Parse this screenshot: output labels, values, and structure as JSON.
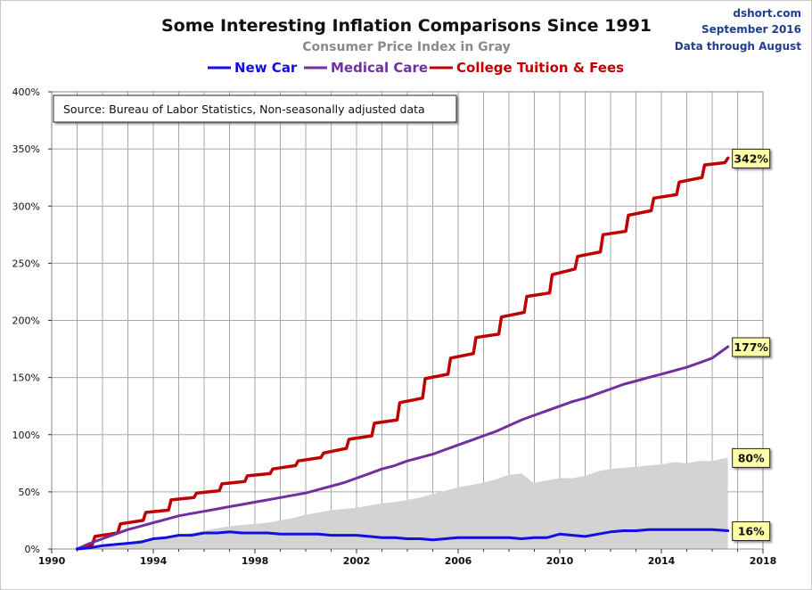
{
  "chart_data": {
    "type": "line",
    "title": "Some Interesting Inflation Comparisons Since 1991",
    "subtitle": "Consumer Price Index in Gray",
    "corner_text": [
      "dshort.com",
      "September 2016",
      "Data through August"
    ],
    "source_note": "Source:  Bureau of Labor Statistics, Non-seasonally adjusted data",
    "xlim": [
      1990,
      2018
    ],
    "ylim": [
      0,
      400
    ],
    "x_ticks": [
      "1990",
      "1994",
      "1998",
      "2002",
      "2006",
      "2010",
      "2014",
      "2018"
    ],
    "y_ticks": [
      "0%",
      "50%",
      "100%",
      "150%",
      "200%",
      "250%",
      "300%",
      "350%",
      "400%"
    ],
    "grid": "vertical every year, horizontal every 50%",
    "legend_position": "top-center",
    "series": [
      {
        "name": "New Car",
        "color": "#1010e0",
        "line_width": 3,
        "x": [
          1991.0,
          1991.5,
          1992.0,
          1992.5,
          1993.0,
          1993.5,
          1994.0,
          1994.5,
          1995.0,
          1995.5,
          1996.0,
          1996.5,
          1997.0,
          1997.5,
          1998.0,
          1998.5,
          1999.0,
          1999.5,
          2000.0,
          2000.5,
          2001.0,
          2001.5,
          2002.0,
          2002.5,
          2003.0,
          2003.5,
          2004.0,
          2004.5,
          2005.0,
          2005.5,
          2006.0,
          2006.5,
          2007.0,
          2007.5,
          2008.0,
          2008.5,
          2009.0,
          2009.5,
          2010.0,
          2010.5,
          2011.0,
          2011.5,
          2012.0,
          2012.5,
          2013.0,
          2013.5,
          2014.0,
          2014.5,
          2015.0,
          2015.5,
          2016.0,
          2016.62
        ],
        "values": [
          0,
          1,
          3,
          4,
          5,
          6,
          9,
          10,
          12,
          12,
          14,
          14,
          15,
          14,
          14,
          14,
          13,
          13,
          13,
          13,
          12,
          12,
          12,
          11,
          10,
          10,
          9,
          9,
          8,
          9,
          10,
          10,
          10,
          10,
          10,
          9,
          10,
          10,
          13,
          12,
          11,
          13,
          15,
          16,
          16,
          17,
          17,
          17,
          17,
          17,
          17,
          16
        ]
      },
      {
        "name": "Medical Care",
        "color": "#7030a0",
        "line_width": 3,
        "x": [
          1991.0,
          1991.5,
          1992.0,
          1992.5,
          1993.0,
          1993.5,
          1994.0,
          1994.5,
          1995.0,
          1995.5,
          1996.0,
          1996.5,
          1997.0,
          1997.5,
          1998.0,
          1998.5,
          1999.0,
          1999.5,
          2000.0,
          2000.5,
          2001.0,
          2001.5,
          2002.0,
          2002.5,
          2003.0,
          2003.5,
          2004.0,
          2004.5,
          2005.0,
          2005.5,
          2006.0,
          2006.5,
          2007.0,
          2007.5,
          2008.0,
          2008.5,
          2009.0,
          2009.5,
          2010.0,
          2010.5,
          2011.0,
          2011.5,
          2012.0,
          2012.5,
          2013.0,
          2013.5,
          2014.0,
          2014.5,
          2015.0,
          2015.5,
          2016.0,
          2016.62
        ],
        "values": [
          0,
          5,
          9,
          13,
          17,
          20,
          23,
          26,
          29,
          31,
          33,
          35,
          37,
          39,
          41,
          43,
          45,
          47,
          49,
          52,
          55,
          58,
          62,
          66,
          70,
          73,
          77,
          80,
          83,
          87,
          91,
          95,
          99,
          103,
          108,
          113,
          117,
          121,
          125,
          129,
          132,
          136,
          140,
          144,
          147,
          150,
          153,
          156,
          159,
          163,
          167,
          177
        ]
      },
      {
        "name": "College Tuition & Fees",
        "color": "#c00000",
        "line_width": 3.5,
        "x": [
          1991.0,
          1991.6,
          1991.7,
          1992.6,
          1992.7,
          1993.6,
          1993.7,
          1994.6,
          1994.7,
          1995.6,
          1995.7,
          1996.6,
          1996.7,
          1997.6,
          1997.7,
          1998.6,
          1998.7,
          1999.6,
          1999.7,
          2000.6,
          2000.7,
          2001.6,
          2001.7,
          2002.6,
          2002.7,
          2003.6,
          2003.7,
          2004.6,
          2004.7,
          2005.6,
          2005.7,
          2006.6,
          2006.7,
          2007.6,
          2007.7,
          2008.6,
          2008.7,
          2009.6,
          2009.7,
          2010.6,
          2010.7,
          2011.6,
          2011.7,
          2012.6,
          2012.7,
          2013.6,
          2013.7,
          2014.6,
          2014.7,
          2015.6,
          2015.7,
          2016.5,
          2016.62
        ],
        "values": [
          0,
          4,
          11,
          14,
          22,
          25,
          32,
          34,
          43,
          45,
          49,
          51,
          57,
          59,
          64,
          66,
          70,
          73,
          77,
          80,
          84,
          88,
          96,
          99,
          110,
          113,
          128,
          132,
          149,
          153,
          167,
          171,
          185,
          188,
          203,
          207,
          221,
          224,
          240,
          245,
          256,
          260,
          275,
          278,
          292,
          296,
          307,
          310,
          321,
          325,
          336,
          338,
          342
        ]
      },
      {
        "name": "Consumer Price Index",
        "color": "#d3d3d3",
        "type": "area",
        "x": [
          1991.0,
          1991.5,
          1992.0,
          1992.5,
          1993.0,
          1993.5,
          1994.0,
          1994.5,
          1995.0,
          1995.5,
          1996.0,
          1996.5,
          1997.0,
          1997.5,
          1998.0,
          1998.5,
          1999.0,
          1999.5,
          2000.0,
          2000.5,
          2001.0,
          2001.5,
          2002.0,
          2002.5,
          2003.0,
          2003.5,
          2004.0,
          2004.5,
          2005.0,
          2005.5,
          2006.0,
          2006.5,
          2007.0,
          2007.5,
          2008.0,
          2008.5,
          2008.9,
          2009.0,
          2009.5,
          2010.0,
          2010.5,
          2011.0,
          2011.5,
          2012.0,
          2012.5,
          2013.0,
          2013.5,
          2014.0,
          2014.5,
          2015.0,
          2015.5,
          2016.0,
          2016.62
        ],
        "values": [
          0,
          1,
          3,
          5,
          6,
          8,
          9,
          11,
          12,
          14,
          16,
          18,
          20,
          21,
          22,
          23,
          25,
          27,
          30,
          32,
          34,
          35,
          36,
          38,
          40,
          41,
          43,
          45,
          48,
          51,
          54,
          56,
          58,
          61,
          65,
          66,
          59,
          58,
          60,
          62,
          62,
          64,
          68,
          70,
          71,
          72,
          73,
          74,
          76,
          75,
          77,
          77,
          80
        ]
      }
    ],
    "end_labels": [
      {
        "series": "College Tuition & Fees",
        "value": 342,
        "text": "342%"
      },
      {
        "series": "Medical Care",
        "value": 177,
        "text": "177%"
      },
      {
        "series": "Consumer Price Index",
        "value": 80,
        "text": "80%"
      },
      {
        "series": "New Car",
        "value": 16,
        "text": "16%"
      }
    ]
  }
}
